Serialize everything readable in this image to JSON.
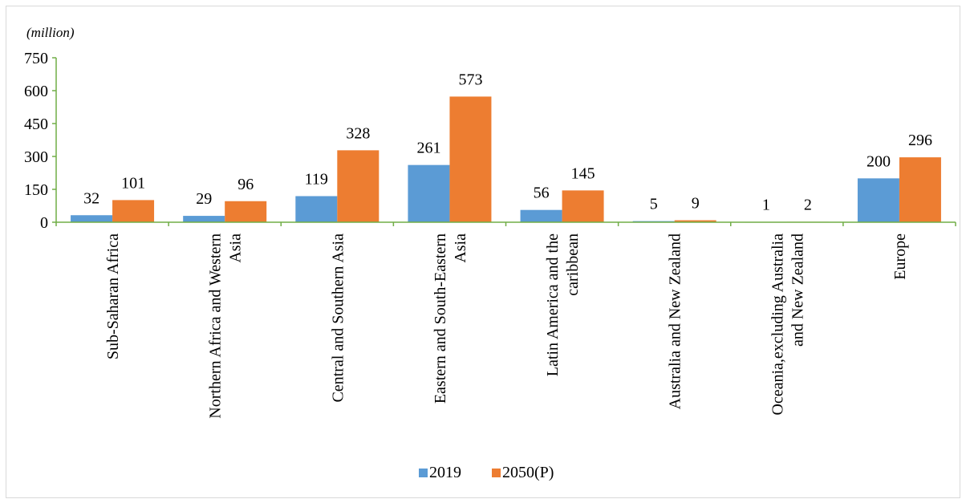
{
  "chart_data": {
    "type": "bar",
    "unit_label": "(million)",
    "ylim": [
      0,
      750
    ],
    "yticks": [
      0,
      150,
      300,
      450,
      600,
      750
    ],
    "categories": [
      [
        "Sub-Saharan Africa"
      ],
      [
        "Northern Africa and Western",
        "Asia"
      ],
      [
        "Central and Southern Asia"
      ],
      [
        "Eastern and South-Eastern",
        "Asia"
      ],
      [
        "Latin America and the",
        "caribbean"
      ],
      [
        "Australia and New Zealand"
      ],
      [
        "Oceania,excluding Australia",
        "and New Zealand"
      ],
      [
        "Europe"
      ]
    ],
    "series": [
      {
        "name": "2019",
        "color": "#5b9bd5",
        "values": [
          32,
          29,
          119,
          261,
          56,
          5,
          1,
          200
        ]
      },
      {
        "name": "2050(P)",
        "color": "#ed7d31",
        "values": [
          101,
          96,
          328,
          573,
          145,
          9,
          2,
          296
        ]
      }
    ],
    "axis_color": "#70ad47",
    "grid": false,
    "legend_position": "bottom"
  }
}
